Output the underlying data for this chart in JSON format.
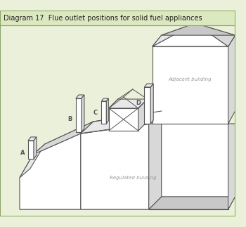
{
  "title": "Diagram 17  Flue outlet positions for solid fuel appliances",
  "title_fontsize": 7.0,
  "background_color": "#eaf0da",
  "header_color": "#dce8c0",
  "border_color": "#8aaa5a",
  "line_color": "#555555",
  "label_color": "#555555",
  "face_white": "#ffffff",
  "face_light": "#e8e8e8",
  "face_mid": "#d8d8d8",
  "face_dark": "#c8c8c8",
  "adjacent_label": "Adjacent building",
  "regulated_label": "Regulated building",
  "labels_A": "A",
  "labels_B": "B",
  "labels_C": "C",
  "labels_D": "D"
}
